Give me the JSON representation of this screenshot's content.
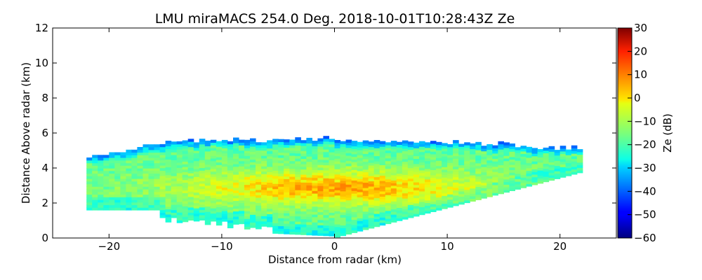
{
  "chart_data": {
    "type": "heatmap",
    "title": "LMU miraMACS 254.0 Deg. 2018-10-01T10:28:43Z  Ze",
    "xlabel": "Distance from radar (km)",
    "ylabel": "Distance Above radar  (km)",
    "xlim": [
      -25,
      25
    ],
    "ylim": [
      0,
      12
    ],
    "x_ticks": [
      -20,
      -10,
      0,
      10,
      20
    ],
    "x_tick_labels": [
      "−20",
      "−10",
      "0",
      "10",
      "20"
    ],
    "y_ticks": [
      0,
      2,
      4,
      6,
      8,
      10,
      12
    ],
    "y_tick_labels": [
      "0",
      "2",
      "4",
      "6",
      "8",
      "10",
      "12"
    ],
    "colorbar": {
      "label": "Ze (dB)",
      "colormap": "jet",
      "range": [
        -60,
        30
      ],
      "ticks": [
        30,
        20,
        10,
        0,
        -10,
        -20,
        -30,
        -40,
        -50,
        -60
      ],
      "tick_labels": [
        "30",
        "20",
        "10",
        "0",
        "−10",
        "−20",
        "−30",
        "−40",
        "−50",
        "−60"
      ]
    },
    "echo": {
      "description_key": "RHI scan reflectivity",
      "x_extent_km": [
        -22,
        22
      ],
      "cloud_top_km": 5.5,
      "max_ze_dB": 10,
      "max_ze_height_km": 2.8,
      "typical_ze_dB": -10
    }
  }
}
